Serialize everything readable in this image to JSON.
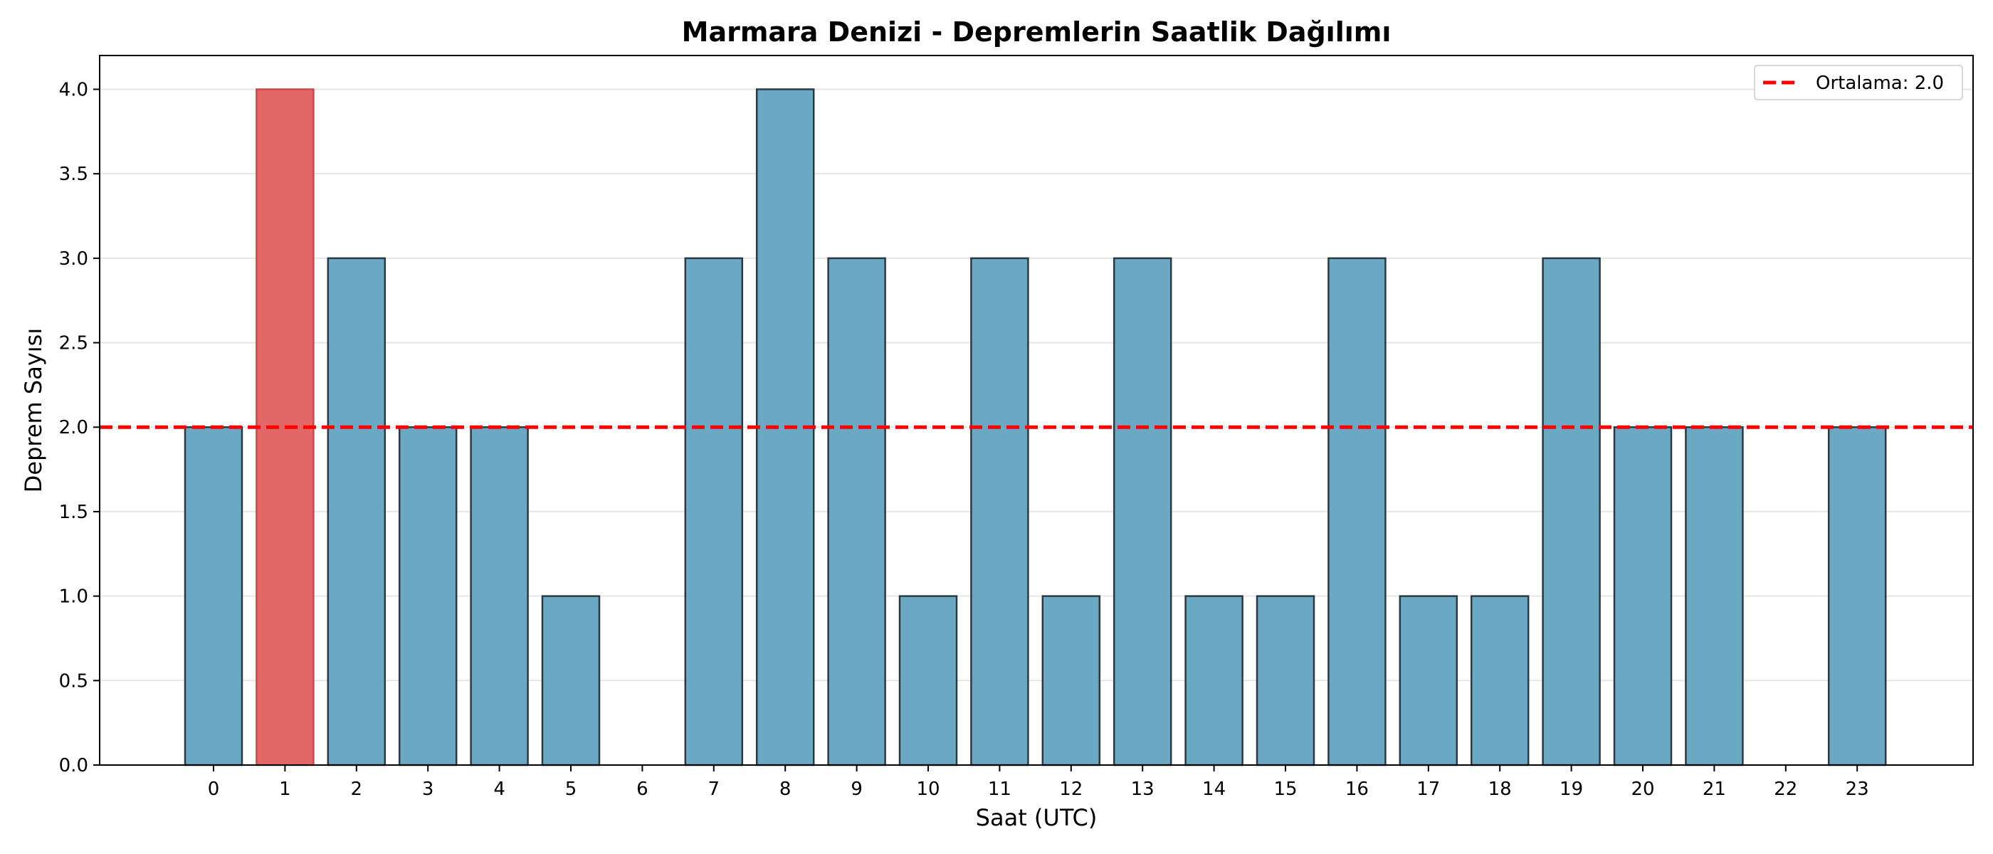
{
  "chart_data": {
    "type": "bar",
    "title": "Marmara Denizi - Depremlerin Saatlik Dağılımı",
    "xlabel": "Saat (UTC)",
    "ylabel": "Deprem Sayısı",
    "categories": [
      "0",
      "1",
      "2",
      "3",
      "4",
      "5",
      "6",
      "7",
      "8",
      "9",
      "10",
      "11",
      "12",
      "13",
      "14",
      "15",
      "16",
      "17",
      "18",
      "19",
      "20",
      "21",
      "22",
      "23"
    ],
    "values": [
      2,
      4,
      3,
      2,
      2,
      1,
      0,
      3,
      4,
      3,
      1,
      3,
      1,
      3,
      1,
      1,
      3,
      1,
      1,
      3,
      2,
      2,
      0,
      2
    ],
    "highlight_index": 1,
    "ylim": [
      0,
      4.2
    ],
    "yticks": [
      "0.0",
      "0.5",
      "1.0",
      "1.5",
      "2.0",
      "2.5",
      "3.0",
      "3.5",
      "4.0"
    ],
    "grid": "horizontal",
    "mean_line": {
      "value": 2.0,
      "label": "Ortalama: 2.0",
      "style": "dashed"
    },
    "legend": {
      "position": "top-right",
      "entries": [
        "Ortalama: 2.0"
      ]
    },
    "colors": {
      "bar": "#6aa8c4",
      "bar_highlight": "#e46767",
      "bar_edge": "#2b3a42",
      "mean_line": "#ff0000",
      "grid": "#e6e6e6"
    }
  }
}
